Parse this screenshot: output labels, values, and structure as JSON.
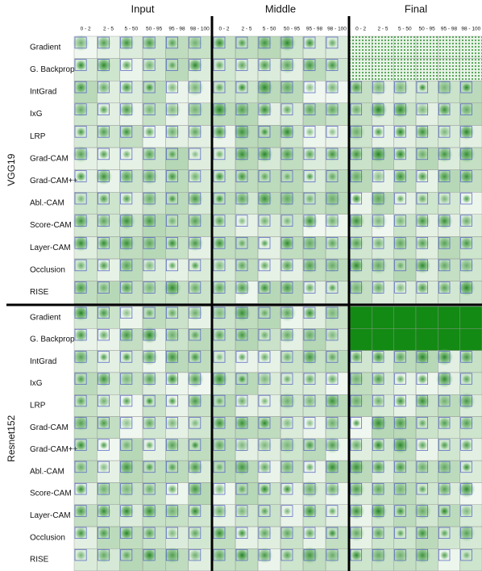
{
  "groups": [
    {
      "title": "Input",
      "columns": [
        "0 - 2",
        "2 - 5",
        "5 - 50",
        "50 - 95",
        "95 - 98",
        "98 - 100"
      ]
    },
    {
      "title": "Middle",
      "columns": [
        "0 - 2",
        "2 - 5",
        "5 - 50",
        "50 - 95",
        "95 - 98",
        "98 - 100"
      ]
    },
    {
      "title": "Final",
      "columns": [
        "0 - 2",
        "2 - 5",
        "5 - 50",
        "50 - 95",
        "95 - 98",
        "98 - 100"
      ]
    }
  ],
  "models": [
    {
      "name": "VGG19",
      "rows": [
        "Gradient",
        "G. Backprop",
        "IntGrad",
        "IxG",
        "LRP",
        "Grad-CAM",
        "Grad-CAM++",
        "Abl.-CAM",
        "Score-CAM",
        "Layer-CAM",
        "Occlusion",
        "RISE"
      ]
    },
    {
      "name": "Resnet152",
      "rows": [
        "Gradient",
        "G. Backprop",
        "IntGrad",
        "IxG",
        "LRP",
        "Grad-CAM",
        "Grad-CAM++",
        "Abl.-CAM",
        "Score-CAM",
        "Layer-CAM",
        "Occlusion",
        "RISE"
      ]
    }
  ]
}
